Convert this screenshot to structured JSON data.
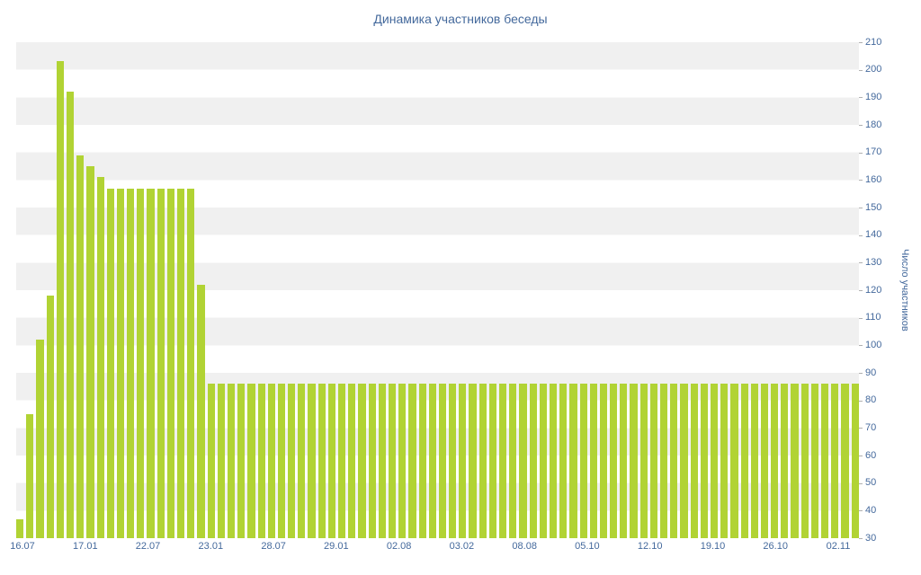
{
  "chart": {
    "title": "Динамика участников беседы",
    "y_axis_title": "Число участников"
  },
  "colors": {
    "bar": "#b1d334",
    "label_text": "#44699c",
    "stripe": "#f0f0f0",
    "tick": "#b0b0b0"
  },
  "chart_data": {
    "type": "bar",
    "title": "Динамика участников беседы",
    "xlabel": "",
    "ylabel": "Число участников",
    "ylim": [
      30,
      210
    ],
    "ytick_step": 10,
    "yticks": [
      30,
      40,
      50,
      60,
      70,
      80,
      90,
      100,
      110,
      120,
      130,
      140,
      150,
      160,
      170,
      180,
      190,
      200,
      210
    ],
    "x_labels": [
      "16.07",
      "17.01",
      "22.07",
      "23.01",
      "28.07",
      "29.01",
      "02.08",
      "03.02",
      "08.08",
      "05.10",
      "12.10",
      "19.10",
      "26.10",
      "02.11"
    ],
    "values": [
      37,
      75,
      102,
      118,
      203,
      192,
      169,
      165,
      161,
      157,
      157,
      157,
      157,
      157,
      157,
      157,
      157,
      157,
      122,
      86,
      86,
      86,
      86,
      86,
      86,
      86,
      86,
      86,
      86,
      86,
      86,
      86,
      86,
      86,
      86,
      86,
      86,
      86,
      86,
      86,
      86,
      86,
      86,
      86,
      86,
      86,
      86,
      86,
      86,
      86,
      86,
      86,
      86,
      86,
      86,
      86,
      86,
      86,
      86,
      86,
      86,
      86,
      86,
      86,
      86,
      86,
      86,
      86,
      86,
      86,
      86,
      86,
      86,
      86,
      86,
      86,
      86,
      86,
      86,
      86,
      86,
      86,
      86,
      86
    ],
    "grid": "horizontal alternating striped bands every 10 units",
    "legend": "none",
    "y_axis_position": "right"
  }
}
